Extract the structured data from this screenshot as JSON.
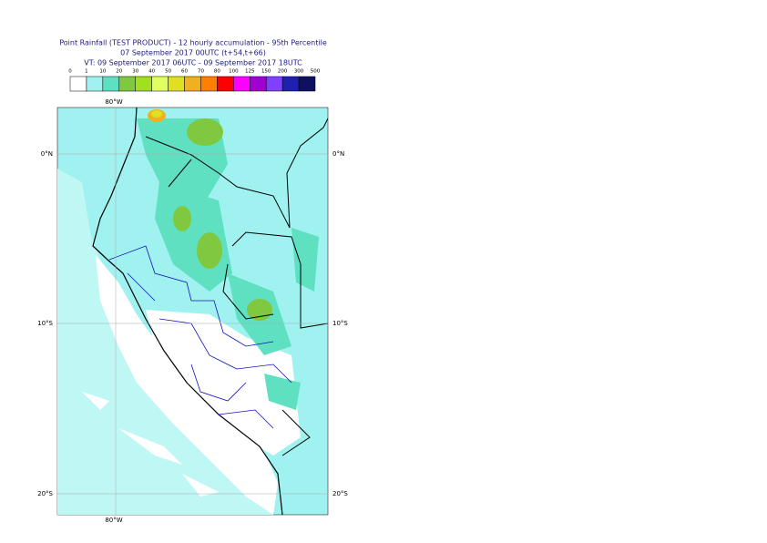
{
  "title": {
    "line1": "Point Rainfall (TEST PRODUCT) - 12 hourly accumulation - 95th Percentile",
    "line2": "07 September 2017 00UTC (t+54,t+66)",
    "line3": "VT: 09 September 2017 06UTC - 09 September 2017 18UTC"
  },
  "legend": {
    "labels": [
      0,
      1,
      10,
      20,
      30,
      40,
      50,
      60,
      70,
      80,
      100,
      125,
      150,
      200,
      300,
      500
    ],
    "colors": [
      "#ffffff",
      "#a0f2f0",
      "#5fe0c0",
      "#80c840",
      "#a0e020",
      "#e0ff60",
      "#e0e020",
      "#f0b020",
      "#ff8000",
      "#ff0000",
      "#ff00ff",
      "#a000d0",
      "#8040ff",
      "#2020b0",
      "#101060"
    ]
  },
  "map": {
    "longitude_labels": [
      "80°W"
    ],
    "latitude_labels": [
      "0°N",
      "10°S",
      "20°S"
    ]
  }
}
